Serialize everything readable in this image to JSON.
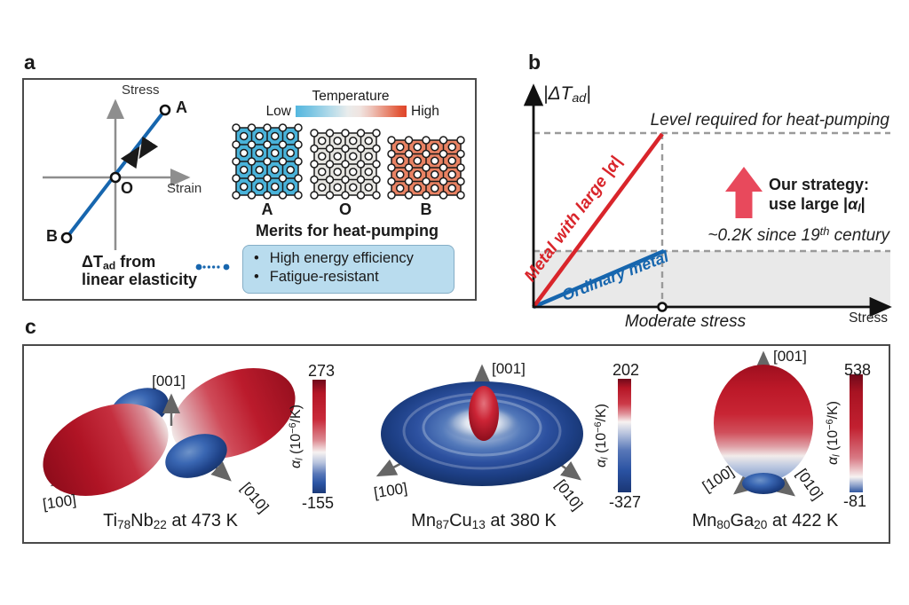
{
  "panel_a": {
    "label": "a",
    "plot": {
      "y_axis_label": "Stress",
      "x_axis_label": "Strain",
      "point_a": "A",
      "point_o": "O",
      "point_b": "B",
      "annotation_line1": [
        {
          "t": "ΔT"
        },
        {
          "sub": "ad"
        },
        {
          "t": " from"
        }
      ],
      "annotation_line2": [
        {
          "t": "linear elasticity"
        }
      ]
    },
    "temperature_scale": {
      "title": "Temperature",
      "low_label": "Low",
      "high_label": "High"
    },
    "lattices": [
      {
        "label": "A",
        "color": "#49b3da"
      },
      {
        "label": "O",
        "color": "#e7e6e2"
      },
      {
        "label": "B",
        "color": "#e98263"
      }
    ],
    "merits": {
      "title": "Merits for heat-pumping",
      "bullet": "•",
      "items": [
        "High energy efficiency",
        "Fatigue-resistant"
      ]
    }
  },
  "panel_b": {
    "label": "b",
    "y_axis_label": [
      {
        "t": "|Δ"
      },
      {
        "i": "T"
      },
      {
        "sub": "ad"
      },
      {
        "t": "|"
      }
    ],
    "x_axis_label": "Stress",
    "level_line_label": "Level required for heat-pumping",
    "red_line_label": "Metal with large |α|",
    "blue_line_label": "Ordinary metal",
    "strategy_line1": "Our strategy:",
    "strategy_line2": [
      {
        "t": "use large |"
      },
      {
        "i": "α"
      },
      {
        "sub": "l"
      },
      {
        "t": "|"
      }
    ],
    "baseline_label": [
      {
        "t": "~0.2K since 19"
      },
      {
        "sup": "th"
      },
      {
        "t": " century"
      }
    ],
    "moderate_stress_label": "Moderate stress",
    "colors": {
      "large_alpha_metal": "#d9252b",
      "ordinary_metal": "#1766ae",
      "strategy_arrow": "#e8495c"
    }
  },
  "panel_c": {
    "label": "c",
    "plots": [
      {
        "caption": [
          {
            "t": "Ti"
          },
          {
            "sub": "78"
          },
          {
            "t": "Nb"
          },
          {
            "sub": "22"
          },
          {
            "t": " at 473 K"
          }
        ],
        "axis_up": "[001]",
        "axis_left": "[100]",
        "axis_right": "[010]",
        "colorbar": {
          "max": "273",
          "min": "-155",
          "label": [
            {
              "i": "α"
            },
            {
              "sub": "l"
            },
            {
              "t": " (10"
            },
            {
              "sup": "−6"
            },
            {
              "t": "/K)"
            }
          ]
        }
      },
      {
        "caption": [
          {
            "t": "Mn"
          },
          {
            "sub": "87"
          },
          {
            "t": "Cu"
          },
          {
            "sub": "13"
          },
          {
            "t": " at 380 K"
          }
        ],
        "axis_up": "[001]",
        "axis_left": "[100]",
        "axis_right": "[010]",
        "colorbar": {
          "max": "202",
          "min": "-327",
          "label": [
            {
              "i": "α"
            },
            {
              "sub": "l"
            },
            {
              "t": " (10"
            },
            {
              "sup": "−6"
            },
            {
              "t": "/K)"
            }
          ]
        }
      },
      {
        "caption": [
          {
            "t": "Mn"
          },
          {
            "sub": "80"
          },
          {
            "t": "Ga"
          },
          {
            "sub": "20"
          },
          {
            "t": " at 422 K"
          }
        ],
        "axis_up": "[001]",
        "axis_left": "[100]",
        "axis_right": "[010]",
        "colorbar": {
          "max": "538",
          "min": "-81",
          "label": [
            {
              "i": "α"
            },
            {
              "sub": "l"
            },
            {
              "t": " (10"
            },
            {
              "sup": "−6"
            },
            {
              "t": "/K)"
            }
          ]
        }
      }
    ]
  },
  "chart_data": [
    {
      "type": "line",
      "panel": "b",
      "title": "Adiabatic temperature change vs stress (schematic)",
      "xlabel": "Stress",
      "ylabel": "|ΔT_ad|",
      "x_range": [
        0,
        1
      ],
      "y_range": [
        0,
        1.3
      ],
      "series": [
        {
          "name": "Metal with large |α|",
          "x": [
            0,
            0.36
          ],
          "y": [
            0,
            1.0
          ],
          "color": "#d9252b"
        },
        {
          "name": "Ordinary metal",
          "x": [
            0,
            0.37
          ],
          "y": [
            0,
            0.32
          ],
          "color": "#1766ae"
        }
      ],
      "reference_lines": [
        {
          "label": "Level required for heat-pumping",
          "y": 1.0
        },
        {
          "label": "~0.2K since 19th century",
          "y": 0.32
        },
        {
          "label": "Moderate stress",
          "x": 0.36
        }
      ],
      "annotations": [
        "Our strategy: use large |α_l|"
      ],
      "grid": false,
      "legend_position": "on-line labels"
    },
    {
      "type": "surface",
      "panel": "c",
      "title": "Ti78Nb22 at 473 K",
      "quantity": "α_l (10^-6/K)",
      "range": [
        -155,
        273
      ],
      "axes": [
        "[100]",
        "[010]",
        "[001]"
      ],
      "shape": "large positive (red) lobes along basal diagonal with two small negative (blue) lobes"
    },
    {
      "type": "surface",
      "panel": "c",
      "title": "Mn87Cu13 at 380 K",
      "quantity": "α_l (10^-6/K)",
      "range": [
        -327,
        202
      ],
      "axes": [
        "[100]",
        "[010]",
        "[001]"
      ],
      "shape": "oblate negative (blue) torus with small positive (red) lobe along [001]"
    },
    {
      "type": "surface",
      "panel": "c",
      "title": "Mn80Ga20 at 422 K",
      "quantity": "α_l (10^-6/K)",
      "range": [
        -81,
        538
      ],
      "axes": [
        "[100]",
        "[010]",
        "[001]"
      ],
      "shape": "prolate positive (red) ellipsoid along [001] with small negative (blue) bottom lobe"
    }
  ]
}
